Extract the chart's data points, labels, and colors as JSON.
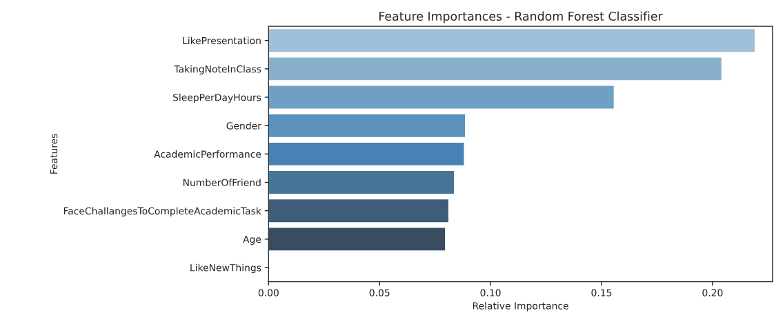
{
  "chart_data": {
    "type": "bar",
    "orientation": "horizontal",
    "title": "Feature Importances - Random Forest Classifier",
    "xlabel": "Relative Importance",
    "ylabel": "Features",
    "categories": [
      "LikePresentation",
      "TakingNoteInClass",
      "SleepPerDayHours",
      "Gender",
      "AcademicPerformance",
      "NumberOfFriend",
      "FaceChallangesToCompleteAcademicTask",
      "Age",
      "LikeNewThings"
    ],
    "values": [
      0.219,
      0.204,
      0.1555,
      0.0885,
      0.088,
      0.0835,
      0.081,
      0.0795,
      0
    ],
    "colors": [
      "#a0bfd9",
      "#88b0cd",
      "#6fa0c3",
      "#5a92bd",
      "#4682b4",
      "#467497",
      "#3d5d7a",
      "#3a4d60",
      "#2f3a45"
    ],
    "xlim": [
      0,
      0.227
    ],
    "xticks": [
      {
        "value": 0,
        "label": "0.00"
      },
      0.05,
      {
        "value": 0.1,
        "label": "0.10"
      },
      0.15,
      {
        "value": 0.2,
        "label": "0.20"
      }
    ],
    "grid": false,
    "legend": false
  }
}
